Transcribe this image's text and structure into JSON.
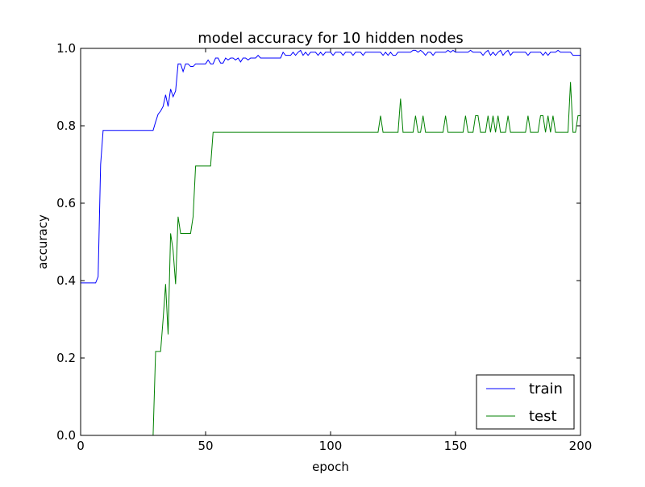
{
  "chart_data": {
    "type": "line",
    "title": "model accuracy for 10 hidden nodes",
    "xlabel": "epoch",
    "ylabel": "accuracy",
    "xlim": [
      0,
      200
    ],
    "ylim": [
      0.0,
      1.0
    ],
    "xticks": [
      0,
      50,
      100,
      150,
      200
    ],
    "xtick_labels": [
      "0",
      "50",
      "100",
      "150",
      "200"
    ],
    "yticks": [
      0.0,
      0.2,
      0.4,
      0.6,
      0.8,
      1.0
    ],
    "ytick_labels": [
      "0.0",
      "0.2",
      "0.4",
      "0.6",
      "0.8",
      "1.0"
    ],
    "grid": false,
    "legend_position": "lower-right",
    "series": [
      {
        "name": "train",
        "color": "#0000ff",
        "points": [
          [
            0,
            0.394
          ],
          [
            6,
            0.394
          ],
          [
            7,
            0.41
          ],
          [
            8,
            0.7
          ],
          [
            9,
            0.788
          ],
          [
            20,
            0.788
          ],
          [
            29,
            0.788
          ],
          [
            30,
            0.81
          ],
          [
            31,
            0.83
          ],
          [
            32,
            0.838
          ],
          [
            33,
            0.85
          ],
          [
            34,
            0.88
          ],
          [
            35,
            0.85
          ],
          [
            36,
            0.895
          ],
          [
            37,
            0.875
          ],
          [
            38,
            0.89
          ],
          [
            39,
            0.96
          ],
          [
            40,
            0.96
          ],
          [
            41,
            0.94
          ],
          [
            42,
            0.96
          ],
          [
            43,
            0.96
          ],
          [
            44,
            0.953
          ],
          [
            45,
            0.953
          ],
          [
            46,
            0.96
          ],
          [
            47,
            0.96
          ],
          [
            49,
            0.96
          ],
          [
            50,
            0.96
          ],
          [
            51,
            0.97
          ],
          [
            52,
            0.96
          ],
          [
            53,
            0.96
          ],
          [
            54,
            0.975
          ],
          [
            55,
            0.975
          ],
          [
            56,
            0.962
          ],
          [
            57,
            0.962
          ],
          [
            58,
            0.975
          ],
          [
            59,
            0.97
          ],
          [
            60,
            0.975
          ],
          [
            61,
            0.975
          ],
          [
            62,
            0.97
          ],
          [
            63,
            0.975
          ],
          [
            64,
            0.965
          ],
          [
            65,
            0.975
          ],
          [
            66,
            0.975
          ],
          [
            67,
            0.97
          ],
          [
            68,
            0.975
          ],
          [
            70,
            0.975
          ],
          [
            71,
            0.982
          ],
          [
            72,
            0.975
          ],
          [
            80,
            0.975
          ],
          [
            81,
            0.99
          ],
          [
            82,
            0.982
          ],
          [
            84,
            0.982
          ],
          [
            85,
            0.99
          ],
          [
            86,
            0.982
          ],
          [
            87,
            0.99
          ],
          [
            88,
            0.995
          ],
          [
            89,
            0.982
          ],
          [
            90,
            0.99
          ],
          [
            91,
            0.982
          ],
          [
            92,
            0.99
          ],
          [
            94,
            0.99
          ],
          [
            95,
            0.982
          ],
          [
            96,
            0.99
          ],
          [
            97,
            0.982
          ],
          [
            98,
            0.99
          ],
          [
            100,
            0.99
          ],
          [
            101,
            0.982
          ],
          [
            102,
            0.99
          ],
          [
            104,
            0.99
          ],
          [
            105,
            0.982
          ],
          [
            106,
            0.99
          ],
          [
            108,
            0.99
          ],
          [
            109,
            0.982
          ],
          [
            110,
            0.99
          ],
          [
            112,
            0.99
          ],
          [
            113,
            0.982
          ],
          [
            114,
            0.99
          ],
          [
            120,
            0.99
          ],
          [
            121,
            0.982
          ],
          [
            122,
            0.99
          ],
          [
            123,
            0.982
          ],
          [
            124,
            0.99
          ],
          [
            125,
            0.982
          ],
          [
            126,
            0.982
          ],
          [
            127,
            0.99
          ],
          [
            132,
            0.99
          ],
          [
            133,
            0.995
          ],
          [
            134,
            0.995
          ],
          [
            135,
            0.99
          ],
          [
            136,
            0.995
          ],
          [
            137,
            0.99
          ],
          [
            138,
            0.982
          ],
          [
            139,
            0.99
          ],
          [
            140,
            0.99
          ],
          [
            141,
            0.982
          ],
          [
            142,
            0.99
          ],
          [
            146,
            0.99
          ],
          [
            147,
            0.995
          ],
          [
            148,
            0.99
          ],
          [
            149,
            0.995
          ],
          [
            150,
            0.99
          ],
          [
            155,
            0.99
          ],
          [
            156,
            0.995
          ],
          [
            157,
            0.99
          ],
          [
            160,
            0.99
          ],
          [
            161,
            0.982
          ],
          [
            162,
            0.99
          ],
          [
            163,
            0.995
          ],
          [
            164,
            0.982
          ],
          [
            165,
            0.99
          ],
          [
            166,
            0.982
          ],
          [
            167,
            0.99
          ],
          [
            168,
            0.995
          ],
          [
            169,
            0.982
          ],
          [
            170,
            0.99
          ],
          [
            171,
            0.995
          ],
          [
            172,
            0.982
          ],
          [
            173,
            0.99
          ],
          [
            178,
            0.99
          ],
          [
            179,
            0.982
          ],
          [
            180,
            0.99
          ],
          [
            184,
            0.99
          ],
          [
            185,
            0.982
          ],
          [
            186,
            0.99
          ],
          [
            187,
            0.982
          ],
          [
            188,
            0.99
          ],
          [
            190,
            0.99
          ],
          [
            191,
            0.995
          ],
          [
            192,
            0.99
          ],
          [
            196,
            0.99
          ],
          [
            197,
            0.982
          ],
          [
            198,
            0.982
          ],
          [
            200,
            0.982
          ]
        ]
      },
      {
        "name": "test",
        "color": "#008000",
        "points": [
          [
            0,
            0.0
          ],
          [
            29,
            0.0
          ],
          [
            30,
            0.217
          ],
          [
            32,
            0.217
          ],
          [
            33,
            0.3
          ],
          [
            34,
            0.391
          ],
          [
            35,
            0.261
          ],
          [
            36,
            0.522
          ],
          [
            37,
            0.478
          ],
          [
            38,
            0.391
          ],
          [
            39,
            0.565
          ],
          [
            40,
            0.522
          ],
          [
            44,
            0.522
          ],
          [
            45,
            0.565
          ],
          [
            46,
            0.696
          ],
          [
            52,
            0.696
          ],
          [
            53,
            0.783
          ],
          [
            119,
            0.783
          ],
          [
            120,
            0.826
          ],
          [
            121,
            0.783
          ],
          [
            127,
            0.783
          ],
          [
            128,
            0.87
          ],
          [
            129,
            0.783
          ],
          [
            133,
            0.783
          ],
          [
            134,
            0.826
          ],
          [
            135,
            0.783
          ],
          [
            136,
            0.783
          ],
          [
            137,
            0.826
          ],
          [
            138,
            0.783
          ],
          [
            145,
            0.783
          ],
          [
            146,
            0.826
          ],
          [
            147,
            0.783
          ],
          [
            153,
            0.783
          ],
          [
            154,
            0.826
          ],
          [
            155,
            0.783
          ],
          [
            157,
            0.783
          ],
          [
            158,
            0.826
          ],
          [
            159,
            0.826
          ],
          [
            160,
            0.783
          ],
          [
            162,
            0.783
          ],
          [
            163,
            0.826
          ],
          [
            164,
            0.783
          ],
          [
            165,
            0.826
          ],
          [
            166,
            0.783
          ],
          [
            167,
            0.826
          ],
          [
            168,
            0.783
          ],
          [
            170,
            0.783
          ],
          [
            171,
            0.826
          ],
          [
            172,
            0.783
          ],
          [
            178,
            0.783
          ],
          [
            179,
            0.826
          ],
          [
            180,
            0.783
          ],
          [
            183,
            0.783
          ],
          [
            184,
            0.826
          ],
          [
            185,
            0.826
          ],
          [
            186,
            0.783
          ],
          [
            187,
            0.826
          ],
          [
            188,
            0.783
          ],
          [
            189,
            0.826
          ],
          [
            190,
            0.783
          ],
          [
            195,
            0.783
          ],
          [
            196,
            0.913
          ],
          [
            197,
            0.783
          ],
          [
            198,
            0.783
          ],
          [
            199,
            0.826
          ],
          [
            200,
            0.826
          ]
        ]
      }
    ]
  }
}
